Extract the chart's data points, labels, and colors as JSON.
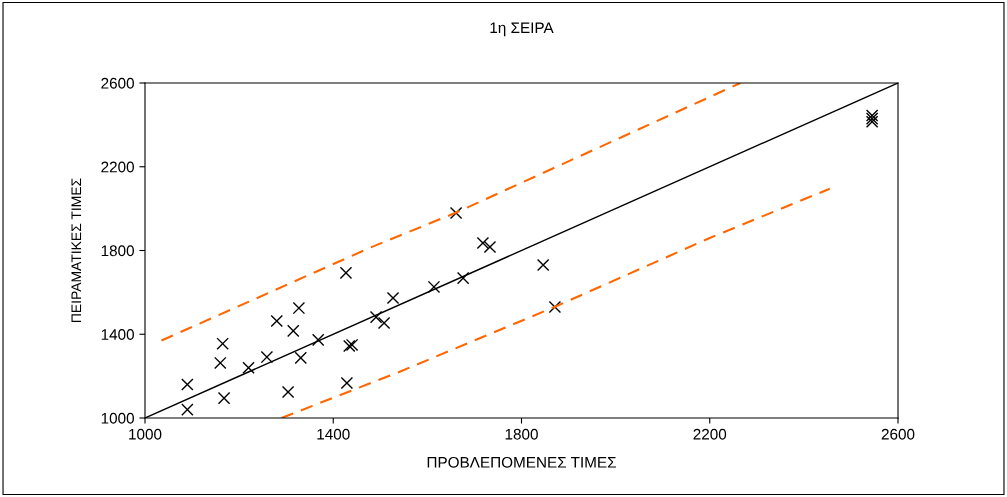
{
  "chart_data": {
    "type": "scatter",
    "title": "1η ΣΕΙΡΑ",
    "xlabel": "ΠΡΟΒΛΕΠΟΜΕΝΕΣ ΤΙΜΕΣ",
    "ylabel": "ΠΕΙΡΑΜΑΤΙΚΕΣ ΤΙΜΕΣ",
    "xlim": [
      1000,
      2600
    ],
    "ylim": [
      1000,
      2600
    ],
    "xticks": [
      1000,
      1400,
      1800,
      2200,
      2600
    ],
    "yticks": [
      1000,
      1400,
      1800,
      2200,
      2600
    ],
    "grid": false,
    "legend": false,
    "marker": "cross",
    "series": [
      {
        "color": "#000000",
        "x": [
          1090,
          1090,
          1165,
          1160,
          1168,
          1220,
          1259,
          1280,
          1315,
          1327,
          1331,
          1304,
          1368,
          1427,
          1429,
          1434,
          1440,
          1491,
          1508,
          1527,
          1614,
          1676,
          1718,
          1733,
          1661,
          1846,
          1871,
          2545,
          2545,
          2545
        ],
        "values": [
          1160,
          1040,
          1355,
          1263,
          1095,
          1240,
          1291,
          1463,
          1416,
          1525,
          1287,
          1124,
          1373,
          1693,
          1167,
          1344,
          1349,
          1482,
          1454,
          1573,
          1626,
          1668,
          1836,
          1817,
          1979,
          1731,
          1530,
          2445,
          2430,
          2415
        ]
      },
      {
        "type": "line",
        "color": "#000000",
        "line_style": "solid",
        "marker": "none",
        "x": [
          1000,
          2600
        ],
        "values": [
          1000,
          2600
        ]
      },
      {
        "type": "line",
        "color": "#ff6600",
        "line_style": "dashed",
        "marker": "none",
        "x": [
          1035,
          1480,
          1660,
          2265
        ],
        "values": [
          1370,
          1815,
          1980,
          2600
        ]
      },
      {
        "type": "line",
        "color": "#ff6600",
        "line_style": "dashed",
        "marker": "none",
        "x": [
          1290,
          1540,
          1870,
          2200,
          2455
        ],
        "values": [
          1000,
          1220,
          1530,
          1860,
          2095
        ]
      }
    ]
  }
}
